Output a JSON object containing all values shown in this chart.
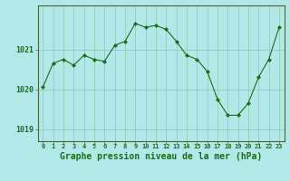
{
  "x": [
    0,
    1,
    2,
    3,
    4,
    5,
    6,
    7,
    8,
    9,
    10,
    11,
    12,
    13,
    14,
    15,
    16,
    17,
    18,
    19,
    20,
    21,
    22,
    23
  ],
  "y": [
    1020.05,
    1020.65,
    1020.75,
    1020.6,
    1020.85,
    1020.75,
    1020.7,
    1021.1,
    1021.2,
    1021.65,
    1021.55,
    1021.6,
    1021.5,
    1021.2,
    1020.85,
    1020.75,
    1020.45,
    1019.75,
    1019.35,
    1019.35,
    1019.65,
    1020.3,
    1020.75,
    1021.55
  ],
  "line_color": "#1a6e1a",
  "marker": "D",
  "marker_size": 2.0,
  "bg_color": "#b3e8e8",
  "grid_color": "#88ccaa",
  "plot_bg": "#b3e8e8",
  "xlabel": "Graphe pression niveau de la mer (hPa)",
  "xlabel_fontsize": 7.0,
  "tick_label_color": "#1a6e1a",
  "ylabel_ticks": [
    1019,
    1020,
    1021
  ],
  "ylim": [
    1018.7,
    1022.1
  ],
  "xlim": [
    -0.5,
    23.5
  ],
  "spine_color": "#446644",
  "tick_fontsize": 5.0,
  "ytick_fontsize": 6.0
}
